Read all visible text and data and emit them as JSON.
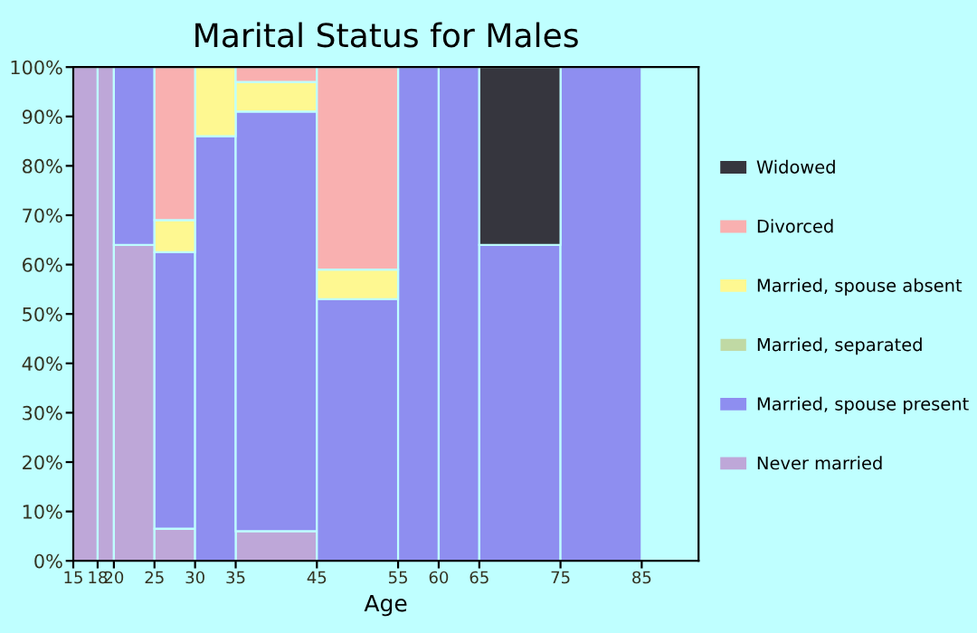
{
  "chart_data": {
    "type": "bar",
    "stacked": true,
    "title": "Marital Status for Males",
    "xlabel": "Age",
    "x": [
      16.5,
      19,
      22.5,
      27.5,
      32.5,
      40,
      50,
      57.5,
      62.5,
      70,
      80
    ],
    "xlim": [
      15,
      92
    ],
    "xticks": [
      15,
      18,
      20,
      25,
      30,
      35,
      45,
      55,
      60,
      65,
      75,
      85
    ],
    "ylim": [
      0,
      100
    ],
    "yticks": [
      {
        "value": 0,
        "label": "0%"
      },
      {
        "value": 10,
        "label": "10%"
      },
      {
        "value": 20,
        "label": "20%"
      },
      {
        "value": 30,
        "label": "30%"
      },
      {
        "value": 40,
        "label": "40%"
      },
      {
        "value": 50,
        "label": "50%"
      },
      {
        "value": 60,
        "label": "60%"
      },
      {
        "value": 70,
        "label": "70%"
      },
      {
        "value": 80,
        "label": "80%"
      },
      {
        "value": 90,
        "label": "90%"
      },
      {
        "value": 100,
        "label": "100%"
      }
    ],
    "series": [
      {
        "name": "Never married",
        "color": "#bea7d8",
        "values": [
          100,
          100,
          64,
          6.5,
          0,
          6,
          0,
          0,
          0,
          0,
          0
        ]
      },
      {
        "name": "Married, spouse present",
        "color": "#8e8ef0",
        "values": [
          0,
          0,
          36,
          56,
          86,
          85,
          53,
          100,
          100,
          64,
          100
        ]
      },
      {
        "name": "Married, separated",
        "color": "#c0d9a4",
        "values": [
          0,
          0,
          0,
          0,
          0,
          0,
          0,
          0,
          0,
          0,
          0
        ]
      },
      {
        "name": "Married, spouse absent",
        "color": "#fef891",
        "values": [
          0,
          0,
          0,
          6.5,
          14,
          6,
          6,
          0,
          0,
          0,
          0
        ]
      },
      {
        "name": "Divorced",
        "color": "#f9b0b0",
        "values": [
          0,
          0,
          0,
          31,
          0,
          3,
          41,
          0,
          0,
          0,
          0
        ]
      },
      {
        "name": "Widowed",
        "color": "#36363e",
        "values": [
          0,
          0,
          0,
          0,
          0,
          0,
          0,
          0,
          0,
          36,
          0
        ]
      }
    ],
    "legend": "right",
    "grid": false
  }
}
